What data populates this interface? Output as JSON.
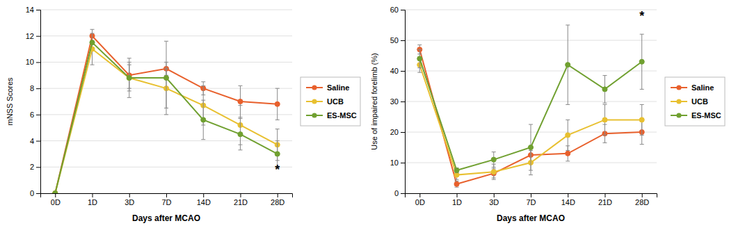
{
  "chart_data": [
    {
      "type": "line",
      "xlabel": "Days after MCAO",
      "ylabel": "mNSS Scores",
      "categories": [
        "0D",
        "1D",
        "3D",
        "7D",
        "14D",
        "21D",
        "28D"
      ],
      "ylim": [
        0,
        14
      ],
      "yticks": [
        0,
        2,
        4,
        6,
        8,
        10,
        12,
        14
      ],
      "grid": true,
      "legend": "right",
      "marker": "circle",
      "series": [
        {
          "name": "Saline",
          "color": "#E8602C",
          "values": [
            0,
            12.0,
            9.0,
            9.5,
            8.0,
            7.0,
            6.8
          ],
          "errors": [
            0,
            0.5,
            1.0,
            0.5,
            0.5,
            1.2,
            1.2
          ]
        },
        {
          "name": "UCB",
          "color": "#E8C030",
          "values": [
            0,
            11.0,
            8.8,
            8.0,
            6.7,
            5.2,
            3.7
          ],
          "errors": [
            0,
            1.2,
            1.5,
            1.5,
            1.5,
            1.5,
            1.2
          ]
        },
        {
          "name": "ES-MSC",
          "color": "#70A030",
          "values": [
            0,
            11.5,
            8.8,
            8.8,
            5.6,
            4.5,
            3.0
          ],
          "errors": [
            0,
            0.0,
            1.0,
            2.8,
            1.5,
            1.2,
            1.0
          ]
        }
      ],
      "annotations": [
        {
          "text": "*",
          "x": "28D",
          "y": 1.5
        }
      ]
    },
    {
      "type": "line",
      "xlabel": "Days after MCAO",
      "ylabel": "Use of impaired forelimb (%)",
      "categories": [
        "0D",
        "1D",
        "3D",
        "7D",
        "14D",
        "21D",
        "28D"
      ],
      "ylim": [
        0,
        60
      ],
      "yticks": [
        0,
        10,
        20,
        30,
        40,
        50,
        60
      ],
      "grid": true,
      "legend": "right",
      "marker": "circle",
      "series": [
        {
          "name": "Saline",
          "color": "#E8602C",
          "values": [
            47.0,
            3.0,
            6.5,
            12.5,
            13.0,
            19.5,
            20.0
          ],
          "errors": [
            1.5,
            1.0,
            1.5,
            2.5,
            2.5,
            3.0,
            4.0
          ]
        },
        {
          "name": "UCB",
          "color": "#E8C030",
          "values": [
            42.0,
            6.0,
            7.0,
            10.0,
            19.0,
            24.0,
            24.0
          ],
          "errors": [
            2.5,
            1.5,
            2.5,
            4.0,
            5.0,
            5.0,
            5.0
          ]
        },
        {
          "name": "ES-MSC",
          "color": "#70A030",
          "values": [
            44.0,
            7.5,
            11.0,
            15.0,
            42.0,
            34.0,
            43.0
          ],
          "errors": [
            3.0,
            0.8,
            2.5,
            7.5,
            13.0,
            4.5,
            9.0
          ]
        }
      ],
      "annotations": [
        {
          "text": "*",
          "x": "28D",
          "y": 56.5
        }
      ]
    }
  ]
}
